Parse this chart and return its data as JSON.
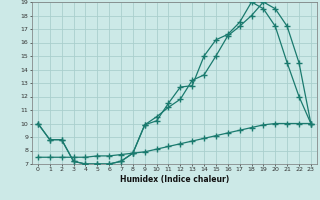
{
  "xlabel": "Humidex (Indice chaleur)",
  "xlim": [
    -0.5,
    23.5
  ],
  "ylim": [
    7,
    19
  ],
  "xticks": [
    0,
    1,
    2,
    3,
    4,
    5,
    6,
    7,
    8,
    9,
    10,
    11,
    12,
    13,
    14,
    15,
    16,
    17,
    18,
    19,
    20,
    21,
    22,
    23
  ],
  "yticks": [
    7,
    8,
    9,
    10,
    11,
    12,
    13,
    14,
    15,
    16,
    17,
    18,
    19
  ],
  "bg_color": "#cce9e7",
  "grid_color": "#aacfcd",
  "line_color": "#1a7a6e",
  "line1_x": [
    0,
    1,
    2,
    3,
    4,
    5,
    6,
    7,
    8,
    9,
    10,
    11,
    12,
    13,
    14,
    15,
    16,
    17,
    18,
    19,
    20,
    21,
    22,
    23
  ],
  "line1_y": [
    10,
    8.8,
    8.8,
    7.2,
    7.0,
    7.0,
    7.0,
    7.2,
    7.8,
    9.9,
    10.2,
    11.5,
    12.7,
    12.8,
    15.0,
    16.2,
    16.6,
    17.5,
    19.0,
    18.5,
    17.2,
    14.5,
    12.0,
    10.0
  ],
  "line2_x": [
    0,
    1,
    2,
    3,
    4,
    5,
    6,
    7,
    8,
    9,
    10,
    11,
    12,
    13,
    14,
    15,
    16,
    17,
    18,
    19,
    20,
    21,
    22,
    23
  ],
  "line2_y": [
    10,
    8.8,
    8.8,
    7.2,
    7.0,
    7.0,
    7.0,
    7.2,
    7.8,
    9.9,
    10.5,
    11.2,
    11.8,
    13.2,
    13.6,
    15.0,
    16.5,
    17.2,
    18.0,
    19.0,
    18.5,
    17.2,
    14.5,
    10.0
  ],
  "line3_x": [
    0,
    1,
    2,
    3,
    4,
    5,
    6,
    7,
    8,
    9,
    10,
    11,
    12,
    13,
    14,
    15,
    16,
    17,
    18,
    19,
    20,
    21,
    22,
    23
  ],
  "line3_y": [
    7.5,
    7.5,
    7.5,
    7.5,
    7.5,
    7.6,
    7.6,
    7.7,
    7.8,
    7.9,
    8.1,
    8.3,
    8.5,
    8.7,
    8.9,
    9.1,
    9.3,
    9.5,
    9.7,
    9.9,
    10.0,
    10.0,
    10.0,
    10.0
  ]
}
